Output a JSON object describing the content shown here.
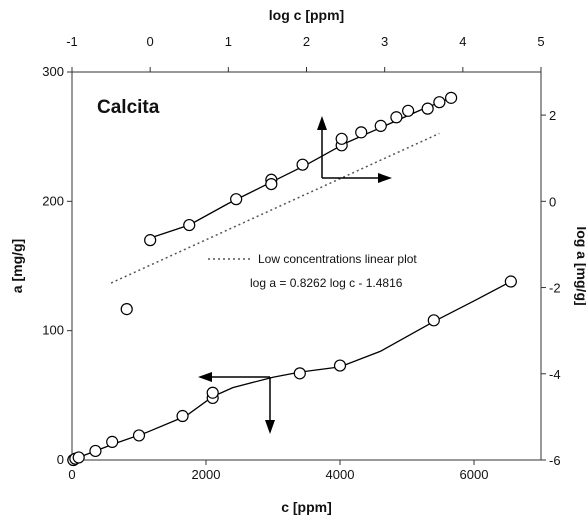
{
  "chart_data": {
    "type": "scatter",
    "title": "",
    "panel_label": "Calcita",
    "grid": false,
    "legend": "none",
    "axes": {
      "bottom": {
        "label": "c [ppm]",
        "range": [
          0,
          7000
        ],
        "ticks": [
          0,
          2000,
          4000,
          6000
        ]
      },
      "left": {
        "label": "a [mg/g]",
        "range": [
          0,
          300
        ],
        "ticks": [
          0,
          100,
          200,
          300
        ]
      },
      "top": {
        "label": "log c [ppm]",
        "range": [
          -1,
          5
        ],
        "ticks": [
          -1,
          0,
          1,
          2,
          3,
          4,
          5
        ]
      },
      "right": {
        "label": "log a [mg/g]",
        "range": [
          -6,
          3
        ],
        "ticks": [
          -6,
          -4,
          -2,
          0,
          2
        ]
      }
    },
    "series": [
      {
        "axes": [
          "bottom",
          "left"
        ],
        "marker": "open-circle",
        "points": [
          [
            20,
            0
          ],
          [
            50,
            1
          ],
          [
            100,
            2
          ],
          [
            350,
            7
          ],
          [
            600,
            14
          ],
          [
            1000,
            19
          ],
          [
            1650,
            34
          ],
          [
            2100,
            48
          ],
          [
            2100,
            52
          ],
          [
            3400,
            67
          ],
          [
            4000,
            73
          ],
          [
            5400,
            108
          ],
          [
            6550,
            138
          ]
        ],
        "curve": [
          [
            0,
            0
          ],
          [
            600,
            12
          ],
          [
            1100,
            21
          ],
          [
            1700,
            34
          ],
          [
            2100,
            49
          ],
          [
            2400,
            56
          ],
          [
            3000,
            64
          ],
          [
            3400,
            68
          ],
          [
            4000,
            72
          ],
          [
            4600,
            84
          ],
          [
            5400,
            107
          ],
          [
            6000,
            123
          ],
          [
            6550,
            138
          ]
        ]
      },
      {
        "axes": [
          "top",
          "right"
        ],
        "marker": "open-circle",
        "points": [
          [
            -0.3,
            -2.5
          ],
          [
            0,
            -0.9
          ],
          [
            0.5,
            -0.55
          ],
          [
            1.1,
            0.05
          ],
          [
            1.55,
            0.5
          ],
          [
            1.55,
            0.4
          ],
          [
            1.95,
            0.85
          ],
          [
            2.45,
            1.3
          ],
          [
            2.45,
            1.45
          ],
          [
            2.7,
            1.6
          ],
          [
            2.95,
            1.75
          ],
          [
            3.15,
            1.95
          ],
          [
            3.3,
            2.1
          ],
          [
            3.55,
            2.15
          ],
          [
            3.7,
            2.3
          ],
          [
            3.85,
            2.4
          ]
        ],
        "curve": [
          [
            0,
            -0.85
          ],
          [
            0.5,
            -0.55
          ],
          [
            1,
            -0.05
          ],
          [
            1.5,
            0.4
          ],
          [
            2,
            0.85
          ],
          [
            2.5,
            1.35
          ],
          [
            3,
            1.75
          ],
          [
            3.5,
            2.15
          ],
          [
            3.85,
            2.4
          ]
        ]
      }
    ],
    "reference_line": {
      "name": "Low concentrations linear plot",
      "equation": "log a = 0.8262 log c - 1.4816",
      "axes": [
        "top",
        "right"
      ],
      "slope": 0.8262,
      "intercept": -1.4816,
      "x_range": [
        -0.5,
        3.7
      ],
      "style": "dotted"
    }
  }
}
